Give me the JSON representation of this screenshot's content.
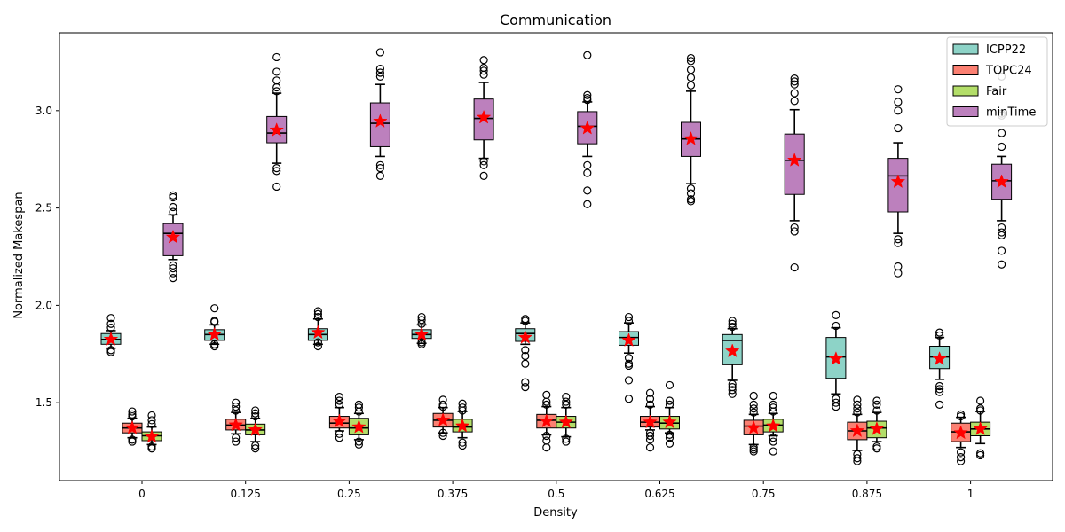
{
  "chart_data": {
    "type": "boxplot",
    "title": "Communication",
    "xlabel": "Density",
    "ylabel": "Normalized Makespan",
    "ylim": [
      1.1,
      3.4
    ],
    "yticks": [
      1.5,
      2.0,
      2.5,
      3.0
    ],
    "ytick_labels": [
      "1.5",
      "2.0",
      "2.5",
      "3.0"
    ],
    "categories": [
      "0",
      "0.125",
      "0.25",
      "0.375",
      "0.5",
      "0.625",
      "0.75",
      "0.875",
      "1"
    ],
    "legend_position": "top-right",
    "grid": false,
    "mean_marker": "red-star",
    "series": [
      {
        "name": "ICPP22",
        "color": "#8dd3c7",
        "boxes": [
          {
            "whislo": 1.78,
            "q1": 1.8,
            "median": 1.825,
            "q3": 1.855,
            "whishi": 1.87,
            "mean": 1.825,
            "fliers": [
              1.76,
              1.77,
              1.885,
              1.905,
              1.935
            ]
          },
          {
            "whislo": 1.8,
            "q1": 1.82,
            "median": 1.85,
            "q3": 1.875,
            "whishi": 1.9,
            "mean": 1.85,
            "fliers": [
              1.79,
              1.8,
              1.915,
              1.92,
              1.985
            ]
          },
          {
            "whislo": 1.8,
            "q1": 1.82,
            "median": 1.85,
            "q3": 1.88,
            "whishi": 1.93,
            "mean": 1.86,
            "fliers": [
              1.79,
              1.81,
              1.94,
              1.955,
              1.97
            ]
          },
          {
            "whislo": 1.805,
            "q1": 1.83,
            "median": 1.85,
            "q3": 1.875,
            "whishi": 1.9,
            "mean": 1.85,
            "fliers": [
              1.8,
              1.81,
              1.905,
              1.925,
              1.94
            ]
          },
          {
            "whislo": 1.8,
            "q1": 1.815,
            "median": 1.855,
            "q3": 1.88,
            "whishi": 1.91,
            "mean": 1.835,
            "fliers": [
              1.58,
              1.605,
              1.7,
              1.74,
              1.77,
              1.92,
              1.93
            ]
          },
          {
            "whislo": 1.755,
            "q1": 1.795,
            "median": 1.835,
            "q3": 1.865,
            "whishi": 1.91,
            "mean": 1.82,
            "fliers": [
              1.52,
              1.615,
              1.69,
              1.7,
              1.73,
              1.92,
              1.94
            ]
          },
          {
            "whislo": 1.615,
            "q1": 1.695,
            "median": 1.82,
            "q3": 1.85,
            "whishi": 1.88,
            "mean": 1.765,
            "fliers": [
              1.545,
              1.565,
              1.58,
              1.595,
              1.89,
              1.905,
              1.92
            ]
          },
          {
            "whislo": 1.545,
            "q1": 1.625,
            "median": 1.735,
            "q3": 1.835,
            "whishi": 1.885,
            "mean": 1.725,
            "fliers": [
              1.48,
              1.5,
              1.52,
              1.895,
              1.95
            ]
          },
          {
            "whislo": 1.62,
            "q1": 1.675,
            "median": 1.735,
            "q3": 1.79,
            "whishi": 1.835,
            "mean": 1.725,
            "fliers": [
              1.49,
              1.555,
              1.57,
              1.585,
              1.845,
              1.86
            ]
          }
        ]
      },
      {
        "name": "TOPC24",
        "color": "#fb8072",
        "boxes": [
          {
            "whislo": 1.32,
            "q1": 1.345,
            "median": 1.37,
            "q3": 1.395,
            "whishi": 1.42,
            "mean": 1.37,
            "fliers": [
              1.3,
              1.31,
              1.43,
              1.44,
              1.455
            ]
          },
          {
            "whislo": 1.34,
            "q1": 1.36,
            "median": 1.385,
            "q3": 1.415,
            "whishi": 1.45,
            "mean": 1.385,
            "fliers": [
              1.3,
              1.32,
              1.46,
              1.48,
              1.5
            ]
          },
          {
            "whislo": 1.355,
            "q1": 1.37,
            "median": 1.395,
            "q3": 1.43,
            "whishi": 1.475,
            "mean": 1.405,
            "fliers": [
              1.32,
              1.34,
              1.49,
              1.51,
              1.53
            ]
          },
          {
            "whislo": 1.345,
            "q1": 1.375,
            "median": 1.41,
            "q3": 1.445,
            "whishi": 1.475,
            "mean": 1.41,
            "fliers": [
              1.33,
              1.345,
              1.48,
              1.49,
              1.515
            ]
          },
          {
            "whislo": 1.335,
            "q1": 1.37,
            "median": 1.41,
            "q3": 1.44,
            "whishi": 1.48,
            "mean": 1.405,
            "fliers": [
              1.27,
              1.305,
              1.33,
              1.49,
              1.505,
              1.54
            ]
          },
          {
            "whislo": 1.36,
            "q1": 1.375,
            "median": 1.4,
            "q3": 1.43,
            "whishi": 1.48,
            "mean": 1.4,
            "fliers": [
              1.27,
              1.31,
              1.33,
              1.345,
              1.49,
              1.52,
              1.55
            ]
          },
          {
            "whislo": 1.285,
            "q1": 1.335,
            "median": 1.38,
            "q3": 1.41,
            "whishi": 1.44,
            "mean": 1.37,
            "fliers": [
              1.25,
              1.26,
              1.27,
              1.45,
              1.47,
              1.49,
              1.535
            ]
          },
          {
            "whislo": 1.255,
            "q1": 1.31,
            "median": 1.355,
            "q3": 1.4,
            "whishi": 1.44,
            "mean": 1.355,
            "fliers": [
              1.2,
              1.215,
              1.235,
              1.45,
              1.47,
              1.49,
              1.515
            ]
          },
          {
            "whislo": 1.27,
            "q1": 1.3,
            "median": 1.35,
            "q3": 1.395,
            "whishi": 1.425,
            "mean": 1.345,
            "fliers": [
              1.2,
              1.22,
              1.245,
              1.43,
              1.44
            ]
          }
        ]
      },
      {
        "name": "Fair",
        "color": "#b3de69",
        "boxes": [
          {
            "whislo": 1.285,
            "q1": 1.305,
            "median": 1.33,
            "q3": 1.35,
            "whishi": 1.375,
            "mean": 1.325,
            "fliers": [
              1.265,
              1.275,
              1.39,
              1.41,
              1.435
            ]
          },
          {
            "whislo": 1.3,
            "q1": 1.335,
            "median": 1.36,
            "q3": 1.39,
            "whishi": 1.42,
            "mean": 1.36,
            "fliers": [
              1.265,
              1.28,
              1.43,
              1.445,
              1.46
            ]
          },
          {
            "whislo": 1.31,
            "q1": 1.335,
            "median": 1.37,
            "q3": 1.42,
            "whishi": 1.445,
            "mean": 1.375,
            "fliers": [
              1.285,
              1.3,
              1.455,
              1.475,
              1.49
            ]
          },
          {
            "whislo": 1.32,
            "q1": 1.35,
            "median": 1.375,
            "q3": 1.415,
            "whishi": 1.455,
            "mean": 1.38,
            "fliers": [
              1.28,
              1.295,
              1.46,
              1.475,
              1.495
            ]
          },
          {
            "whislo": 1.325,
            "q1": 1.37,
            "median": 1.4,
            "q3": 1.43,
            "whishi": 1.475,
            "mean": 1.4,
            "fliers": [
              1.3,
              1.315,
              1.49,
              1.505,
              1.53
            ]
          },
          {
            "whislo": 1.345,
            "q1": 1.365,
            "median": 1.395,
            "q3": 1.43,
            "whishi": 1.475,
            "mean": 1.4,
            "fliers": [
              1.29,
              1.32,
              1.335,
              1.49,
              1.51,
              1.59
            ]
          },
          {
            "whislo": 1.33,
            "q1": 1.35,
            "median": 1.385,
            "q3": 1.415,
            "whishi": 1.445,
            "mean": 1.38,
            "fliers": [
              1.25,
              1.3,
              1.32,
              1.455,
              1.475,
              1.49,
              1.535
            ]
          },
          {
            "whislo": 1.3,
            "q1": 1.32,
            "median": 1.37,
            "q3": 1.405,
            "whishi": 1.45,
            "mean": 1.365,
            "fliers": [
              1.265,
              1.275,
              1.46,
              1.49,
              1.51
            ]
          },
          {
            "whislo": 1.29,
            "q1": 1.33,
            "median": 1.365,
            "q3": 1.4,
            "whishi": 1.455,
            "mean": 1.365,
            "fliers": [
              1.23,
              1.24,
              1.46,
              1.47,
              1.51
            ]
          }
        ]
      },
      {
        "name": "minTime",
        "color": "#bc80bd",
        "boxes": [
          {
            "whislo": 2.235,
            "q1": 2.255,
            "median": 2.37,
            "q3": 2.42,
            "whishi": 2.465,
            "mean": 2.35,
            "fliers": [
              2.14,
              2.165,
              2.19,
              2.205,
              2.48,
              2.505,
              2.555,
              2.565
            ]
          },
          {
            "whislo": 2.73,
            "q1": 2.835,
            "median": 2.885,
            "q3": 2.97,
            "whishi": 3.09,
            "mean": 2.9,
            "fliers": [
              2.61,
              2.69,
              2.705,
              3.1,
              3.12,
              3.155,
              3.2,
              3.275
            ]
          },
          {
            "whislo": 2.765,
            "q1": 2.815,
            "median": 2.935,
            "q3": 3.04,
            "whishi": 3.135,
            "mean": 2.945,
            "fliers": [
              2.665,
              2.705,
              2.72,
              3.175,
              3.195,
              3.215,
              3.3
            ]
          },
          {
            "whislo": 2.755,
            "q1": 2.85,
            "median": 2.96,
            "q3": 3.06,
            "whishi": 3.145,
            "mean": 2.965,
            "fliers": [
              2.665,
              2.72,
              2.74,
              3.185,
              3.205,
              3.22,
              3.26
            ]
          },
          {
            "whislo": 2.765,
            "q1": 2.83,
            "median": 2.92,
            "q3": 2.995,
            "whishi": 3.045,
            "mean": 2.91,
            "fliers": [
              2.52,
              2.59,
              2.68,
              2.72,
              3.055,
              3.065,
              3.08,
              3.285
            ]
          },
          {
            "whislo": 2.625,
            "q1": 2.765,
            "median": 2.855,
            "q3": 2.94,
            "whishi": 3.1,
            "mean": 2.855,
            "fliers": [
              2.535,
              2.545,
              2.575,
              2.6,
              3.13,
              3.17,
              3.21,
              3.255,
              3.27
            ]
          },
          {
            "whislo": 2.435,
            "q1": 2.57,
            "median": 2.745,
            "q3": 2.88,
            "whishi": 3.005,
            "mean": 2.745,
            "fliers": [
              2.195,
              2.38,
              2.4,
              3.05,
              3.09,
              3.135,
              3.15,
              3.165
            ]
          },
          {
            "whislo": 2.37,
            "q1": 2.48,
            "median": 2.665,
            "q3": 2.755,
            "whishi": 2.835,
            "mean": 2.635,
            "fliers": [
              2.165,
              2.2,
              2.32,
              2.34,
              2.91,
              3.0,
              3.045,
              3.11
            ]
          },
          {
            "whislo": 2.435,
            "q1": 2.545,
            "median": 2.64,
            "q3": 2.725,
            "whishi": 2.765,
            "mean": 2.635,
            "fliers": [
              2.21,
              2.28,
              2.36,
              2.375,
              2.4,
              2.815,
              2.885,
              2.975,
              2.985,
              3.175
            ]
          }
        ]
      }
    ]
  }
}
